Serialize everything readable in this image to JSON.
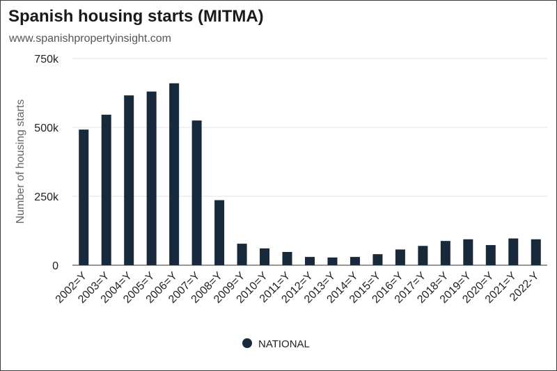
{
  "title": "Spanish housing starts (MITMA)",
  "subtitle": "www.spanishpropertyinsight.com",
  "colors": {
    "bar": "#17293a",
    "grid": "#e3e3e3",
    "axis": "#333333"
  },
  "chart_data": {
    "type": "bar",
    "title": "Spanish housing starts (MITMA)",
    "xlabel": "",
    "ylabel": "Number of housing starts",
    "ylim": [
      0,
      750000
    ],
    "yticks": [
      0,
      250000,
      500000,
      750000
    ],
    "ytick_labels": [
      "0",
      "250k",
      "500k",
      "750k"
    ],
    "grid": true,
    "legend_position": "bottom-center",
    "categories": [
      "2002=Y",
      "2003=Y",
      "2004=Y",
      "2005=Y",
      "2006=Y",
      "2007=Y",
      "2008=Y",
      "2009=Y",
      "2010=Y",
      "2011=Y",
      "2012=Y",
      "2013=Y",
      "2014=Y",
      "2015=Y",
      "2016=Y",
      "2017=Y",
      "2018=Y",
      "2019=Y",
      "2020=Y",
      "2021=Y",
      "2022-Y"
    ],
    "series": [
      {
        "name": "NATIONAL",
        "values": [
          492000,
          546000,
          616000,
          630000,
          660000,
          525000,
          236000,
          78000,
          61000,
          48000,
          30000,
          28000,
          30000,
          40000,
          57000,
          70000,
          88000,
          94000,
          73000,
          97000,
          94000
        ]
      }
    ]
  }
}
